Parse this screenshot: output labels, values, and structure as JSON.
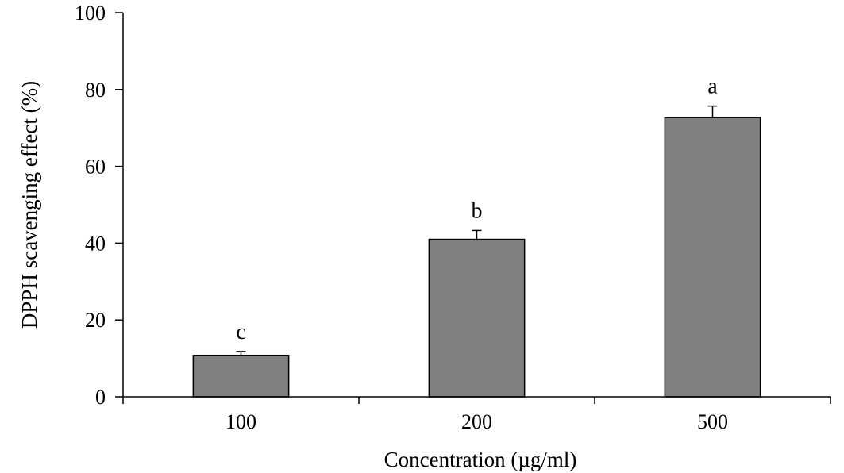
{
  "chart_data": {
    "type": "bar",
    "title": "",
    "xlabel": "Concentration (µg/ml)",
    "ylabel": "DPPH scavenging effect (%)",
    "categories": [
      "100",
      "200",
      "500"
    ],
    "values": [
      10.8,
      41.0,
      72.7
    ],
    "errors": [
      1.0,
      2.3,
      3.0
    ],
    "annotations": [
      "c",
      "b",
      "a"
    ],
    "ylim": [
      0,
      100
    ],
    "yticks": [
      0,
      20,
      40,
      60,
      80,
      100
    ],
    "bar_color": "#808080",
    "grid": false,
    "legend": "none"
  }
}
